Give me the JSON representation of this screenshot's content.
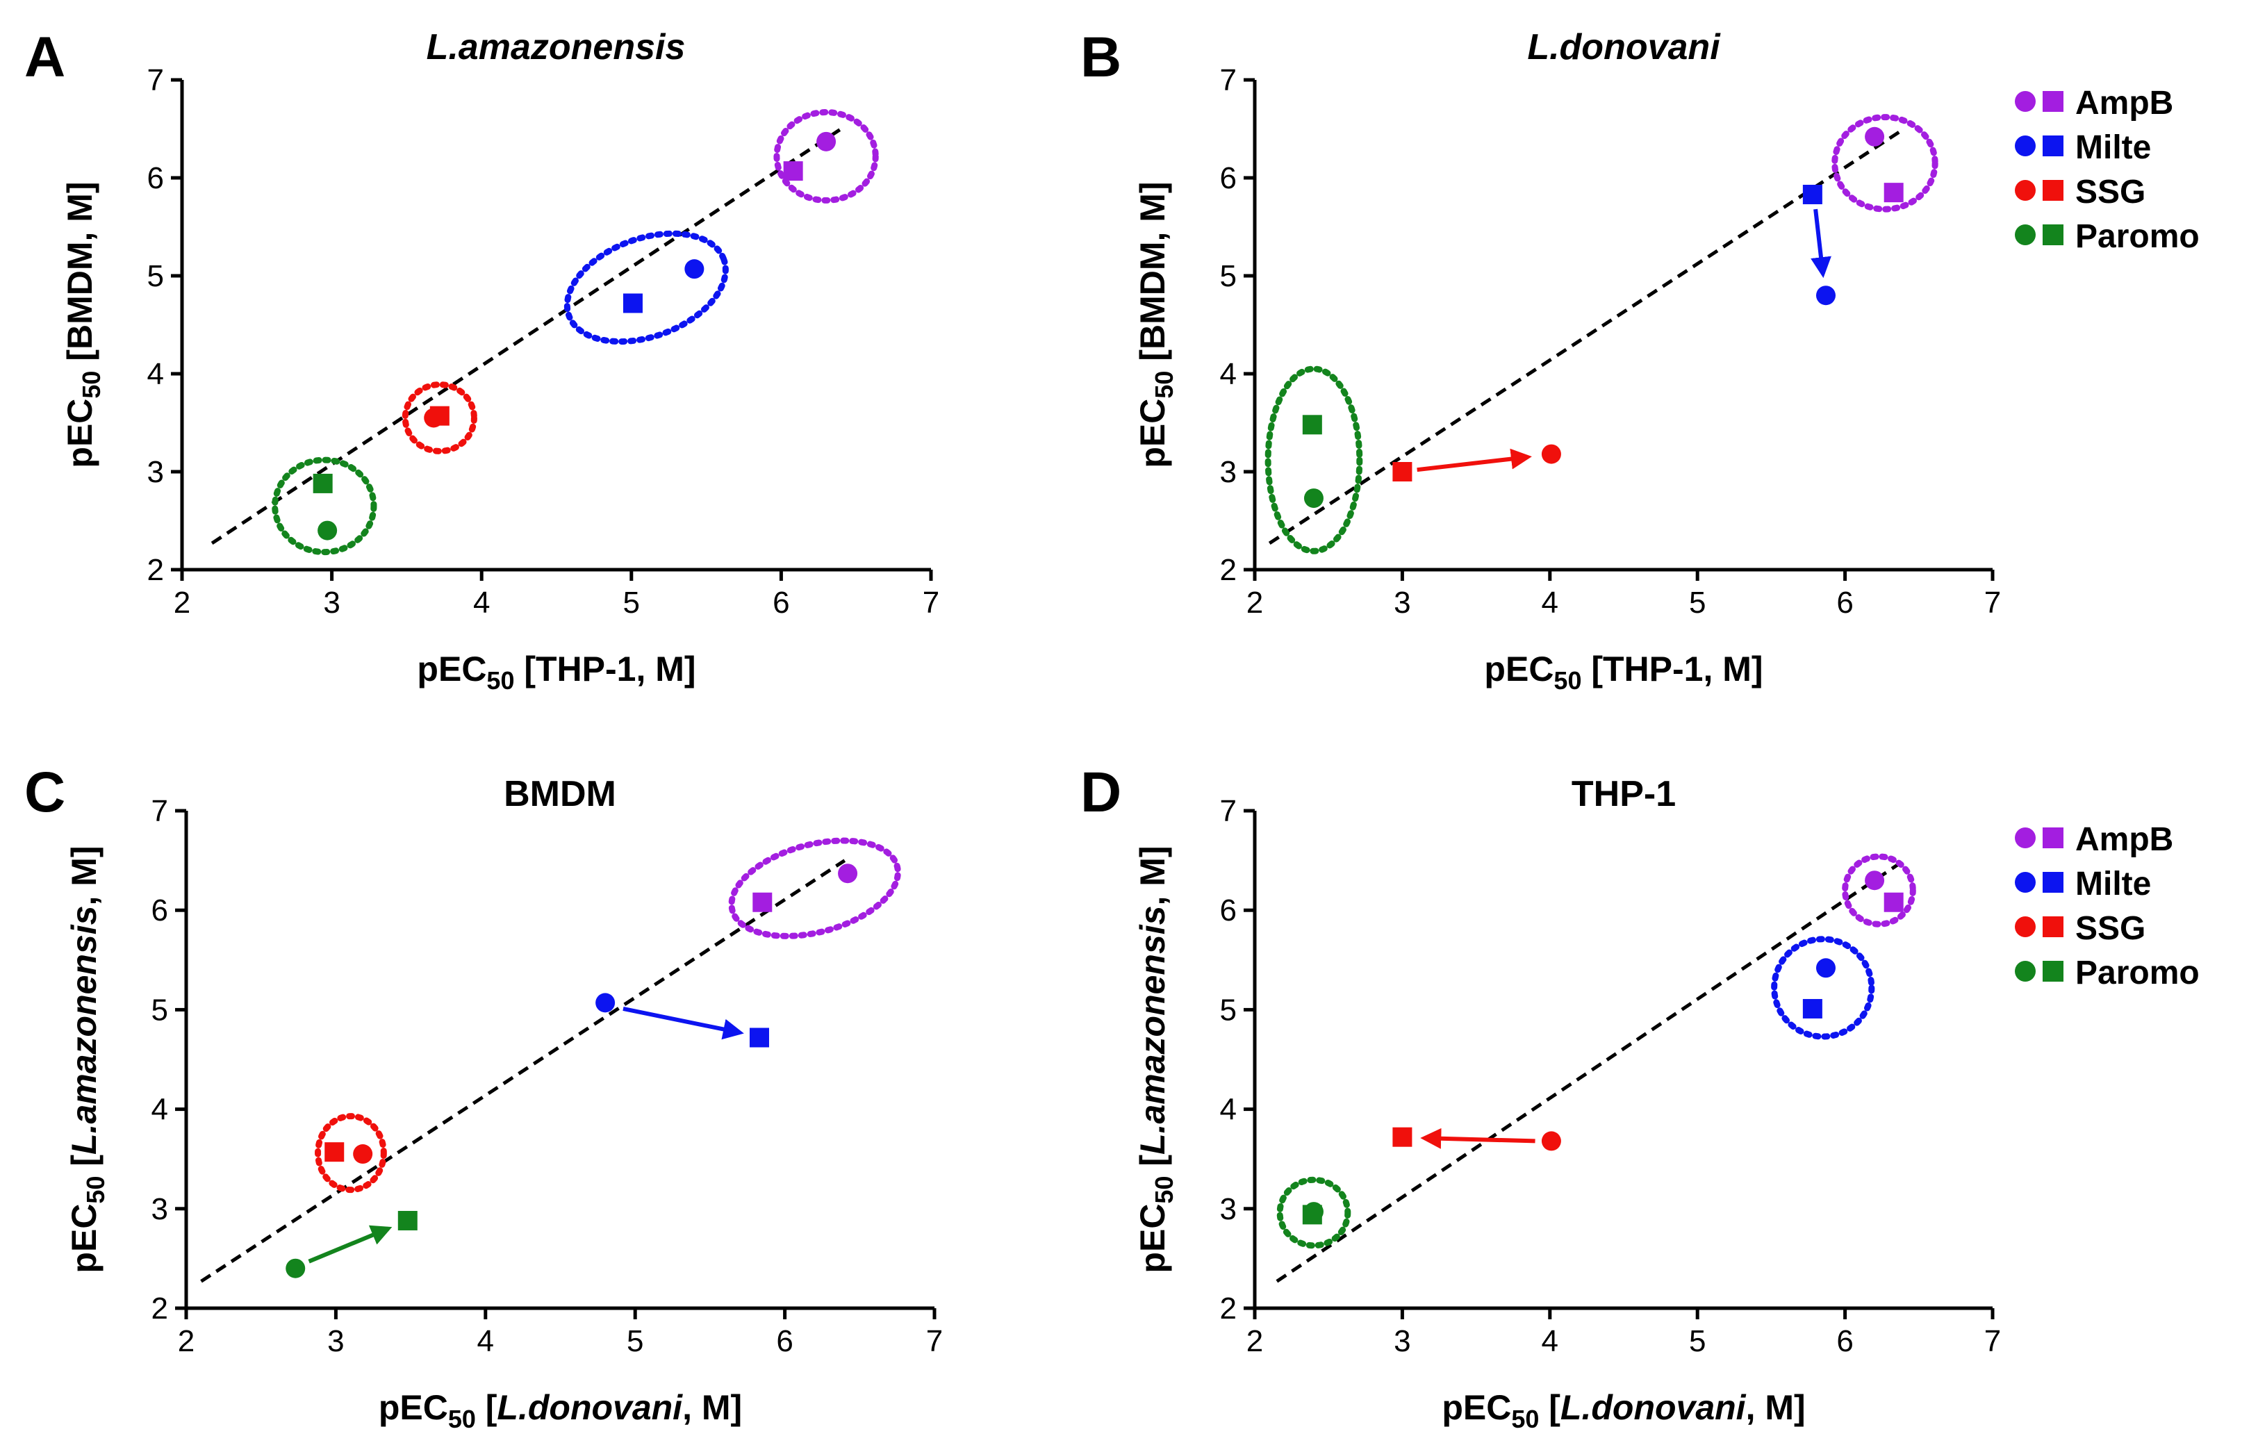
{
  "colors": {
    "AmpB": "#a31ee0",
    "Milte": "#0c14f0",
    "SSG": "#f0100c",
    "Paromo": "#13841d"
  },
  "legend": [
    {
      "key": "AmpB",
      "label": "AmpB"
    },
    {
      "key": "Milte",
      "label": "Milte"
    },
    {
      "key": "SSG",
      "label": "SSG"
    },
    {
      "key": "Paromo",
      "label": "Paromo"
    }
  ],
  "chart_data": [
    {
      "panel": "A",
      "type": "scatter",
      "title": "L.amazonensis",
      "title_italic": true,
      "xlabel": {
        "pre": "pEC",
        "sub": "50",
        "post_plain": " [THP-1, M]"
      },
      "ylabel": {
        "pre": "pEC",
        "sub": "50",
        "post_plain": " [BMDM, M]"
      },
      "xlim": [
        2,
        7
      ],
      "ylim": [
        2,
        7
      ],
      "xticks": [
        "2",
        "3",
        "4",
        "5",
        "6",
        "7"
      ],
      "yticks": [
        "2",
        "3",
        "4",
        "5",
        "6",
        "7"
      ],
      "identity_line": [
        [
          2.2,
          2.27
        ],
        [
          6.4,
          6.5
        ]
      ],
      "points": [
        {
          "drug": "AmpB",
          "shape": "circle",
          "x": 6.3,
          "y": 6.37
        },
        {
          "drug": "AmpB",
          "shape": "square",
          "x": 6.08,
          "y": 6.07
        },
        {
          "drug": "Milte",
          "shape": "circle",
          "x": 5.42,
          "y": 5.07
        },
        {
          "drug": "Milte",
          "shape": "square",
          "x": 5.01,
          "y": 4.72
        },
        {
          "drug": "SSG",
          "shape": "circle",
          "x": 3.68,
          "y": 3.55
        },
        {
          "drug": "SSG",
          "shape": "square",
          "x": 3.72,
          "y": 3.57
        },
        {
          "drug": "Paromo",
          "shape": "circle",
          "x": 2.97,
          "y": 2.4
        },
        {
          "drug": "Paromo",
          "shape": "square",
          "x": 2.94,
          "y": 2.88
        }
      ],
      "rings": [
        {
          "drug": "AmpB",
          "cx": 6.3,
          "cy": 6.22,
          "rx": 0.33,
          "ry": 0.45
        },
        {
          "drug": "Milte",
          "cx": 5.1,
          "cy": 4.88,
          "rx": 0.55,
          "ry": 0.5,
          "rotate": -20
        },
        {
          "drug": "SSG",
          "cx": 3.72,
          "cy": 3.55,
          "rx": 0.23,
          "ry": 0.34
        },
        {
          "drug": "Paromo",
          "cx": 2.95,
          "cy": 2.65,
          "rx": 0.33,
          "ry": 0.47
        }
      ],
      "arrows": []
    },
    {
      "panel": "B",
      "type": "scatter",
      "title": "L.donovani",
      "title_italic": true,
      "xlabel": {
        "pre": "pEC",
        "sub": "50",
        "post_plain": " [THP-1, M]"
      },
      "ylabel": {
        "pre": "pEC",
        "sub": "50",
        "post_plain": " [BMDM, M]"
      },
      "xlim": [
        2,
        7
      ],
      "ylim": [
        2,
        7
      ],
      "xticks": [
        "2",
        "3",
        "4",
        "5",
        "6",
        "7"
      ],
      "yticks": [
        "2",
        "3",
        "4",
        "5",
        "6",
        "7"
      ],
      "identity_line": [
        [
          2.1,
          2.27
        ],
        [
          6.4,
          6.5
        ]
      ],
      "points": [
        {
          "drug": "AmpB",
          "shape": "circle",
          "x": 6.2,
          "y": 6.42
        },
        {
          "drug": "AmpB",
          "shape": "square",
          "x": 6.33,
          "y": 5.85
        },
        {
          "drug": "Milte",
          "shape": "circle",
          "x": 5.87,
          "y": 4.8
        },
        {
          "drug": "Milte",
          "shape": "square",
          "x": 5.78,
          "y": 5.83
        },
        {
          "drug": "SSG",
          "shape": "circle",
          "x": 4.01,
          "y": 3.18
        },
        {
          "drug": "SSG",
          "shape": "square",
          "x": 3.0,
          "y": 3.0
        },
        {
          "drug": "Paromo",
          "shape": "circle",
          "x": 2.4,
          "y": 2.73
        },
        {
          "drug": "Paromo",
          "shape": "square",
          "x": 2.39,
          "y": 3.48
        }
      ],
      "rings": [
        {
          "drug": "AmpB",
          "cx": 6.27,
          "cy": 6.15,
          "rx": 0.34,
          "ry": 0.47
        },
        {
          "drug": "Paromo",
          "cx": 2.4,
          "cy": 3.12,
          "rx": 0.31,
          "ry": 0.93
        }
      ],
      "arrows": [
        {
          "drug": "Milte",
          "from": [
            5.8,
            5.68
          ],
          "to": [
            5.85,
            5.02
          ]
        },
        {
          "drug": "SSG",
          "from": [
            3.1,
            3.02
          ],
          "to": [
            3.85,
            3.15
          ]
        }
      ]
    },
    {
      "panel": "C",
      "type": "scatter",
      "title": "BMDM",
      "title_italic": false,
      "xlabel": {
        "pre": "pEC",
        "sub": "50",
        "post_italic": "L.donovani",
        "post_plain": ", M]"
      },
      "ylabel": {
        "pre": "pEC",
        "sub": "50",
        "post_italic": "L.amazonensis",
        "post_plain": ", M]"
      },
      "xlim": [
        2,
        7
      ],
      "ylim": [
        2,
        7
      ],
      "xticks": [
        "2",
        "3",
        "4",
        "5",
        "6",
        "7"
      ],
      "yticks": [
        "2",
        "3",
        "4",
        "5",
        "6",
        "7"
      ],
      "identity_line": [
        [
          2.1,
          2.27
        ],
        [
          6.4,
          6.5
        ]
      ],
      "points": [
        {
          "drug": "AmpB",
          "shape": "circle",
          "x": 6.42,
          "y": 6.37
        },
        {
          "drug": "AmpB",
          "shape": "square",
          "x": 5.85,
          "y": 6.08
        },
        {
          "drug": "Milte",
          "shape": "circle",
          "x": 4.8,
          "y": 5.07
        },
        {
          "drug": "Milte",
          "shape": "square",
          "x": 5.83,
          "y": 4.72
        },
        {
          "drug": "SSG",
          "shape": "circle",
          "x": 3.18,
          "y": 3.55
        },
        {
          "drug": "SSG",
          "shape": "square",
          "x": 2.99,
          "y": 3.57
        },
        {
          "drug": "Paromo",
          "shape": "circle",
          "x": 2.73,
          "y": 2.4
        },
        {
          "drug": "Paromo",
          "shape": "square",
          "x": 3.48,
          "y": 2.88
        }
      ],
      "rings": [
        {
          "drug": "AmpB",
          "cx": 6.2,
          "cy": 6.22,
          "rx": 0.57,
          "ry": 0.44,
          "rotate": -15
        },
        {
          "drug": "SSG",
          "cx": 3.1,
          "cy": 3.56,
          "rx": 0.22,
          "ry": 0.37
        }
      ],
      "arrows": [
        {
          "drug": "Milte",
          "from": [
            4.92,
            5.01
          ],
          "to": [
            5.7,
            4.77
          ]
        },
        {
          "drug": "Paromo",
          "from": [
            2.82,
            2.47
          ],
          "to": [
            3.35,
            2.8
          ]
        }
      ]
    },
    {
      "panel": "D",
      "type": "scatter",
      "title": "THP-1",
      "title_italic": false,
      "xlabel": {
        "pre": "pEC",
        "sub": "50",
        "post_italic": "L.donovani",
        "post_plain": ", M]"
      },
      "ylabel": {
        "pre": "pEC",
        "sub": "50",
        "post_italic": "L.amazonensis",
        "post_plain": ", M]"
      },
      "xlim": [
        2,
        7
      ],
      "ylim": [
        2,
        7
      ],
      "xticks": [
        "2",
        "3",
        "4",
        "5",
        "6",
        "7"
      ],
      "yticks": [
        "2",
        "3",
        "4",
        "5",
        "6",
        "7"
      ],
      "identity_line": [
        [
          2.15,
          2.27
        ],
        [
          6.4,
          6.5
        ]
      ],
      "points": [
        {
          "drug": "AmpB",
          "shape": "circle",
          "x": 6.2,
          "y": 6.3
        },
        {
          "drug": "AmpB",
          "shape": "square",
          "x": 6.33,
          "y": 6.08
        },
        {
          "drug": "Milte",
          "shape": "circle",
          "x": 5.87,
          "y": 5.42
        },
        {
          "drug": "Milte",
          "shape": "square",
          "x": 5.78,
          "y": 5.01
        },
        {
          "drug": "SSG",
          "shape": "circle",
          "x": 4.01,
          "y": 3.68
        },
        {
          "drug": "SSG",
          "shape": "square",
          "x": 3.0,
          "y": 3.72
        },
        {
          "drug": "Paromo",
          "shape": "circle",
          "x": 2.4,
          "y": 2.97
        },
        {
          "drug": "Paromo",
          "shape": "square",
          "x": 2.39,
          "y": 2.94
        }
      ],
      "rings": [
        {
          "drug": "AmpB",
          "cx": 6.23,
          "cy": 6.2,
          "rx": 0.23,
          "ry": 0.34
        },
        {
          "drug": "Milte",
          "cx": 5.85,
          "cy": 5.22,
          "rx": 0.33,
          "ry": 0.49
        },
        {
          "drug": "Paromo",
          "cx": 2.4,
          "cy": 2.96,
          "rx": 0.23,
          "ry": 0.33
        }
      ],
      "arrows": [
        {
          "drug": "SSG",
          "from": [
            3.9,
            3.68
          ],
          "to": [
            3.15,
            3.71
          ]
        }
      ]
    }
  ]
}
